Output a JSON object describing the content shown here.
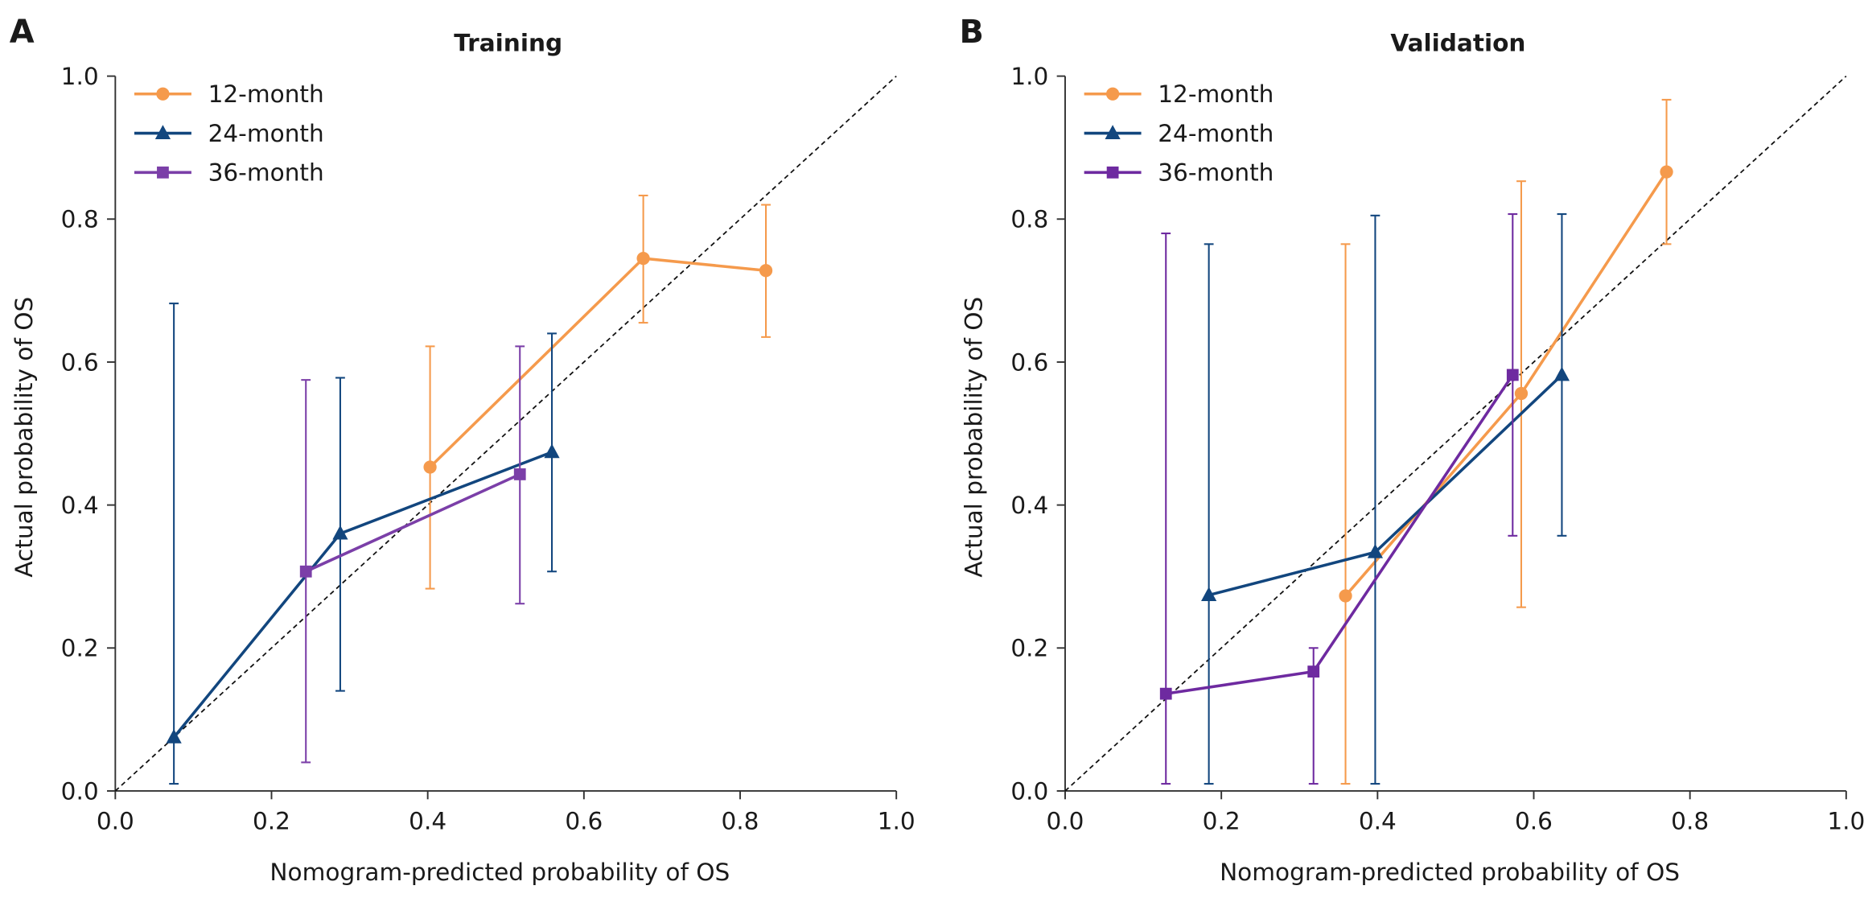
{
  "chart_data": [
    {
      "type": "line",
      "panel": "A",
      "title": "Training",
      "xlabel": "Nomogram-predicted probability of OS",
      "ylabel": "Actual probability of OS",
      "xlim": [
        0,
        1
      ],
      "ylim": [
        0,
        1
      ],
      "xticks": [
        {
          "value": 0,
          "label": "0.0"
        },
        {
          "value": 0.2,
          "label": "0.2"
        },
        {
          "value": 0.4,
          "label": "0.4"
        },
        {
          "value": 0.6,
          "label": "0.6"
        },
        {
          "value": 0.8,
          "label": "0.8"
        },
        {
          "value": 1,
          "label": "1.0"
        }
      ],
      "yticks": [
        {
          "value": 0,
          "label": "0.0"
        },
        {
          "value": 0.2,
          "label": "0.2"
        },
        {
          "value": 0.4,
          "label": "0.4"
        },
        {
          "value": 0.6,
          "label": "0.6"
        },
        {
          "value": 0.8,
          "label": "0.8"
        },
        {
          "value": 1,
          "label": "1.0"
        }
      ],
      "reference_line": true,
      "legend": "upper left",
      "series": [
        {
          "name": "12-month",
          "color": "#f59a4c",
          "marker": "circle",
          "x": [
            0.403,
            0.676,
            0.833
          ],
          "values": [
            0.453,
            0.745,
            0.728
          ],
          "ci_lower": [
            0.283,
            0.655,
            0.635
          ],
          "ci_upper": [
            0.622,
            0.833,
            0.82
          ]
        },
        {
          "name": "24-month",
          "color": "#12467e",
          "marker": "triangle",
          "x": [
            0.075,
            0.288,
            0.559
          ],
          "values": [
            0.075,
            0.36,
            0.474
          ],
          "ci_lower": [
            0.01,
            0.14,
            0.307
          ],
          "ci_upper": [
            0.682,
            0.578,
            0.64
          ]
        },
        {
          "name": "36-month",
          "color": "#7b3fa8",
          "marker": "square",
          "x": [
            0.244,
            0.518
          ],
          "values": [
            0.307,
            0.443
          ],
          "ci_lower": [
            0.04,
            0.262
          ],
          "ci_upper": [
            0.575,
            0.622
          ]
        }
      ]
    },
    {
      "type": "line",
      "panel": "B",
      "title": "Validation",
      "xlabel": "Nomogram-predicted probability of OS",
      "ylabel": "Actual probability of OS",
      "xlim": [
        0,
        1
      ],
      "ylim": [
        0,
        1
      ],
      "xticks": [
        {
          "value": 0,
          "label": "0.0"
        },
        {
          "value": 0.2,
          "label": "0.2"
        },
        {
          "value": 0.4,
          "label": "0.4"
        },
        {
          "value": 0.6,
          "label": "0.6"
        },
        {
          "value": 0.8,
          "label": "0.8"
        },
        {
          "value": 1,
          "label": "1.0"
        }
      ],
      "yticks": [
        {
          "value": 0,
          "label": "0.0"
        },
        {
          "value": 0.2,
          "label": "0.2"
        },
        {
          "value": 0.4,
          "label": "0.4"
        },
        {
          "value": 0.6,
          "label": "0.6"
        },
        {
          "value": 0.8,
          "label": "0.8"
        },
        {
          "value": 1,
          "label": "1.0"
        }
      ],
      "reference_line": true,
      "legend": "upper left",
      "series": [
        {
          "name": "12-month",
          "color": "#f59a4c",
          "marker": "circle",
          "x": [
            0.359,
            0.584,
            0.77
          ],
          "values": [
            0.273,
            0.556,
            0.866
          ],
          "ci_lower": [
            0.01,
            0.257,
            0.765
          ],
          "ci_upper": [
            0.765,
            0.853,
            0.967
          ]
        },
        {
          "name": "24-month",
          "color": "#12467e",
          "marker": "triangle",
          "x": [
            0.184,
            0.397,
            0.636
          ],
          "values": [
            0.274,
            0.334,
            0.582
          ],
          "ci_lower": [
            0.01,
            0.01,
            0.357
          ],
          "ci_upper": [
            0.765,
            0.805,
            0.807
          ]
        },
        {
          "name": "36-month",
          "color": "#6e2aa0",
          "marker": "square",
          "x": [
            0.129,
            0.318,
            0.573
          ],
          "values": [
            0.136,
            0.167,
            0.582
          ],
          "ci_lower": [
            0.01,
            0.01,
            0.357
          ],
          "ci_upper": [
            0.78,
            0.2,
            0.807
          ]
        }
      ]
    }
  ]
}
